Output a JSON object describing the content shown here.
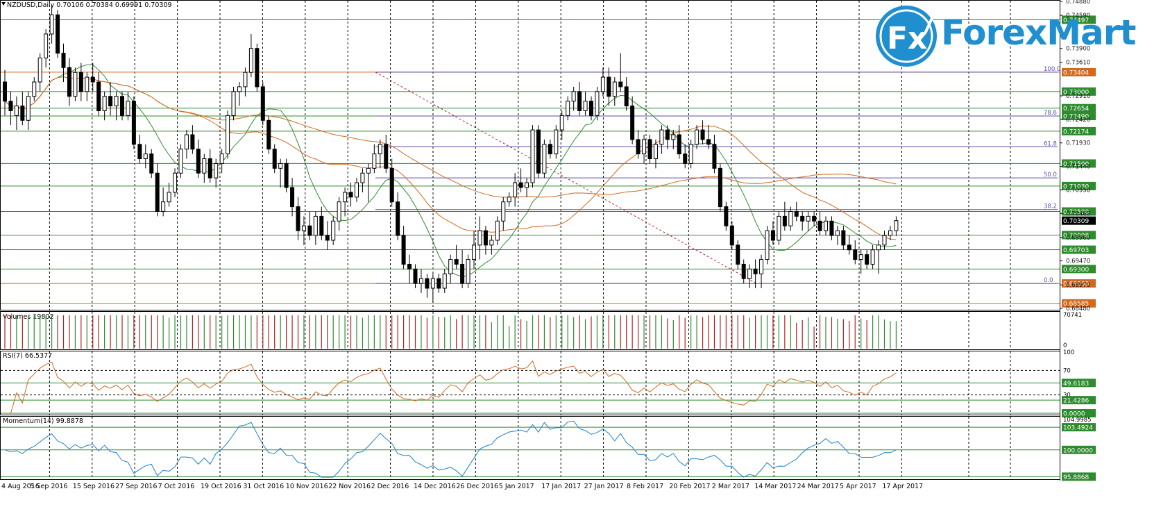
{
  "header": {
    "symbol": "NZDUSD,Daily",
    "ohlc": "0.70106 0.70384 0.69991 0.70309"
  },
  "logo": {
    "text": "ForexMart",
    "mark": "Fx",
    "colors": {
      "blue": "#1f8fd0",
      "white": "#ffffff"
    }
  },
  "colors": {
    "grid": "#000000",
    "level_green": "#2e8b2e",
    "level_orange": "#d2691e",
    "level_purple": "#6a1b6a",
    "fib_line": "#5b4fa8",
    "ma_fast": "#2e8b2e",
    "ma_slow": "#d2691e",
    "trend_dashed": "#b22222",
    "candle_up": "#ffffff",
    "candle_down": "#000000",
    "volume_up": "#2e8b2e",
    "volume_down": "#b22222",
    "rsi": "#d2691e",
    "momentum": "#1e7fd0"
  },
  "chart_data": [
    {
      "type": "candlestick",
      "title": "NZDUSD,Daily",
      "ylim": [
        0.6848,
        0.7488
      ],
      "price_axis_ticks": [
        "0.74880",
        "0.74590",
        "0.73900",
        "0.73610",
        "0.72910",
        "0.72420",
        "0.71930",
        "0.71440",
        "0.70950",
        "0.70460",
        "0.69960",
        "0.69470",
        "0.68970",
        "0.68480"
      ],
      "x_labels": [
        "4 Aug 2016",
        "5 Sep 2016",
        "15 Sep 2016",
        "27 Sep 2016",
        "7 Oct 2016",
        "19 Oct 2016",
        "31 Oct 2016",
        "10 Nov 2016",
        "22 Nov 2016",
        "2 Dec 2016",
        "14 Dec 2016",
        "26 Dec 2016",
        "5 Jan 2017",
        "17 Jan 2017",
        "27 Jan 2017",
        "8 Feb 2017",
        "20 Feb 2017",
        "2 Mar 2017",
        "14 Mar 2017",
        "24 Mar 2017",
        "5 Apr 2017",
        "17 Apr 2017"
      ],
      "horizontal_levels": [
        {
          "label": "0.74497",
          "value": 0.74497,
          "color": "level_green"
        },
        {
          "label": "0.73404",
          "value": 0.73404,
          "color": "level_orange"
        },
        {
          "label": "0.73000",
          "value": 0.73,
          "color": "level_green"
        },
        {
          "label": "0.72654",
          "value": 0.72654,
          "color": "level_green"
        },
        {
          "label": "0.72490",
          "value": 0.7249,
          "color": "level_green"
        },
        {
          "label": "0.72174",
          "value": 0.72174,
          "color": "level_green"
        },
        {
          "label": "0.71500",
          "value": 0.715,
          "color": "level_green"
        },
        {
          "label": "0.71030",
          "value": 0.7103,
          "color": "level_green"
        },
        {
          "label": "0.70500",
          "value": 0.705,
          "color": "level_green"
        },
        {
          "label": "0.70008",
          "value": 0.70008,
          "color": "level_green"
        },
        {
          "label": "0.69703",
          "value": 0.69703,
          "color": "level_green"
        },
        {
          "label": "0.69300",
          "value": 0.693,
          "color": "level_green"
        },
        {
          "label": "0.69000",
          "value": 0.69,
          "color": "level_orange"
        },
        {
          "label": "0.68585",
          "value": 0.68585,
          "color": "level_orange"
        }
      ],
      "current_price": {
        "label": "0.70309",
        "value": 0.70309
      },
      "fibonacci": [
        {
          "label": "100.0",
          "value": 0.73404
        },
        {
          "label": "78.6",
          "value": 0.7249
        },
        {
          "label": "61.8",
          "value": 0.7185
        },
        {
          "label": "50.0",
          "value": 0.712
        },
        {
          "label": "38.2",
          "value": 0.7054
        },
        {
          "label": "0.0",
          "value": 0.69
        }
      ],
      "candles": [
        [
          0.732,
          0.7345,
          0.725,
          0.728
        ],
        [
          0.728,
          0.73,
          0.723,
          0.726
        ],
        [
          0.725,
          0.729,
          0.722,
          0.727
        ],
        [
          0.727,
          0.73,
          0.723,
          0.724
        ],
        [
          0.724,
          0.73,
          0.722,
          0.729
        ],
        [
          0.729,
          0.733,
          0.728,
          0.732
        ],
        [
          0.732,
          0.738,
          0.73,
          0.737
        ],
        [
          0.737,
          0.743,
          0.735,
          0.742
        ],
        [
          0.742,
          0.748,
          0.74,
          0.746
        ],
        [
          0.746,
          0.747,
          0.737,
          0.738
        ],
        [
          0.738,
          0.74,
          0.732,
          0.735
        ],
        [
          0.735,
          0.737,
          0.727,
          0.729
        ],
        [
          0.729,
          0.735,
          0.728,
          0.734
        ],
        [
          0.734,
          0.736,
          0.728,
          0.73
        ],
        [
          0.73,
          0.734,
          0.728,
          0.733
        ],
        [
          0.733,
          0.736,
          0.73,
          0.732
        ],
        [
          0.732,
          0.734,
          0.725,
          0.726
        ],
        [
          0.726,
          0.73,
          0.724,
          0.729
        ],
        [
          0.729,
          0.732,
          0.725,
          0.727
        ],
        [
          0.727,
          0.73,
          0.724,
          0.729
        ],
        [
          0.729,
          0.73,
          0.724,
          0.725
        ],
        [
          0.725,
          0.73,
          0.724,
          0.728
        ],
        [
          0.728,
          0.729,
          0.718,
          0.719
        ],
        [
          0.719,
          0.721,
          0.715,
          0.716
        ],
        [
          0.716,
          0.719,
          0.714,
          0.717
        ],
        [
          0.717,
          0.718,
          0.712,
          0.713
        ],
        [
          0.713,
          0.715,
          0.704,
          0.705
        ],
        [
          0.705,
          0.71,
          0.704,
          0.707
        ],
        [
          0.707,
          0.711,
          0.706,
          0.709
        ],
        [
          0.709,
          0.714,
          0.708,
          0.713
        ],
        [
          0.713,
          0.719,
          0.712,
          0.718
        ],
        [
          0.718,
          0.722,
          0.716,
          0.721
        ],
        [
          0.721,
          0.723,
          0.717,
          0.718
        ],
        [
          0.718,
          0.72,
          0.712,
          0.713
        ],
        [
          0.713,
          0.717,
          0.711,
          0.716
        ],
        [
          0.716,
          0.718,
          0.711,
          0.712
        ],
        [
          0.712,
          0.716,
          0.71,
          0.715
        ],
        [
          0.715,
          0.718,
          0.713,
          0.717
        ],
        [
          0.717,
          0.726,
          0.716,
          0.725
        ],
        [
          0.725,
          0.731,
          0.724,
          0.73
        ],
        [
          0.73,
          0.732,
          0.727,
          0.731
        ],
        [
          0.731,
          0.735,
          0.729,
          0.734
        ],
        [
          0.734,
          0.742,
          0.733,
          0.739
        ],
        [
          0.739,
          0.74,
          0.73,
          0.731
        ],
        [
          0.731,
          0.732,
          0.723,
          0.724
        ],
        [
          0.724,
          0.725,
          0.717,
          0.718
        ],
        [
          0.718,
          0.719,
          0.713,
          0.714
        ],
        [
          0.714,
          0.716,
          0.71,
          0.715
        ],
        [
          0.715,
          0.716,
          0.709,
          0.71
        ],
        [
          0.71,
          0.712,
          0.704,
          0.706
        ],
        [
          0.706,
          0.708,
          0.699,
          0.701
        ],
        [
          0.701,
          0.704,
          0.698,
          0.702
        ],
        [
          0.702,
          0.705,
          0.699,
          0.7
        ],
        [
          0.7,
          0.705,
          0.698,
          0.704
        ],
        [
          0.704,
          0.706,
          0.699,
          0.7
        ],
        [
          0.7,
          0.703,
          0.697,
          0.699
        ],
        [
          0.699,
          0.704,
          0.698,
          0.703
        ],
        [
          0.703,
          0.708,
          0.701,
          0.707
        ],
        [
          0.707,
          0.71,
          0.704,
          0.709
        ],
        [
          0.709,
          0.711,
          0.706,
          0.708
        ],
        [
          0.708,
          0.712,
          0.707,
          0.711
        ],
        [
          0.711,
          0.714,
          0.709,
          0.713
        ],
        [
          0.713,
          0.715,
          0.707,
          0.714
        ],
        [
          0.714,
          0.719,
          0.713,
          0.717
        ],
        [
          0.717,
          0.72,
          0.714,
          0.719
        ],
        [
          0.719,
          0.721,
          0.713,
          0.714
        ],
        [
          0.714,
          0.716,
          0.706,
          0.707
        ],
        [
          0.707,
          0.709,
          0.699,
          0.7
        ],
        [
          0.7,
          0.702,
          0.693,
          0.694
        ],
        [
          0.694,
          0.696,
          0.69,
          0.693
        ],
        [
          0.693,
          0.694,
          0.689,
          0.69
        ],
        [
          0.69,
          0.693,
          0.688,
          0.691
        ],
        [
          0.691,
          0.692,
          0.687,
          0.689
        ],
        [
          0.689,
          0.692,
          0.686,
          0.691
        ],
        [
          0.691,
          0.692,
          0.688,
          0.689
        ],
        [
          0.689,
          0.693,
          0.688,
          0.692
        ],
        [
          0.692,
          0.696,
          0.69,
          0.695
        ],
        [
          0.695,
          0.698,
          0.693,
          0.694
        ],
        [
          0.694,
          0.697,
          0.689,
          0.69
        ],
        [
          0.69,
          0.696,
          0.689,
          0.695
        ],
        [
          0.695,
          0.701,
          0.693,
          0.698
        ],
        [
          0.698,
          0.704,
          0.695,
          0.701
        ],
        [
          0.701,
          0.702,
          0.696,
          0.698
        ],
        [
          0.698,
          0.7,
          0.696,
          0.699
        ],
        [
          0.699,
          0.704,
          0.698,
          0.703
        ],
        [
          0.703,
          0.708,
          0.701,
          0.707
        ],
        [
          0.707,
          0.709,
          0.706,
          0.708
        ],
        [
          0.708,
          0.713,
          0.706,
          0.711
        ],
        [
          0.711,
          0.714,
          0.709,
          0.71
        ],
        [
          0.71,
          0.712,
          0.708,
          0.711
        ],
        [
          0.711,
          0.723,
          0.71,
          0.722
        ],
        [
          0.722,
          0.723,
          0.712,
          0.713
        ],
        [
          0.713,
          0.72,
          0.712,
          0.719
        ],
        [
          0.719,
          0.72,
          0.716,
          0.717
        ],
        [
          0.717,
          0.723,
          0.716,
          0.722
        ],
        [
          0.722,
          0.726,
          0.72,
          0.725
        ],
        [
          0.725,
          0.729,
          0.724,
          0.728
        ],
        [
          0.728,
          0.731,
          0.726,
          0.73
        ],
        [
          0.73,
          0.732,
          0.725,
          0.726
        ],
        [
          0.726,
          0.73,
          0.725,
          0.728
        ],
        [
          0.728,
          0.729,
          0.724,
          0.725
        ],
        [
          0.725,
          0.731,
          0.724,
          0.73
        ],
        [
          0.73,
          0.735,
          0.729,
          0.733
        ],
        [
          0.733,
          0.735,
          0.727,
          0.729
        ],
        [
          0.729,
          0.733,
          0.727,
          0.732
        ],
        [
          0.732,
          0.738,
          0.73,
          0.731
        ],
        [
          0.731,
          0.733,
          0.726,
          0.727
        ],
        [
          0.727,
          0.729,
          0.719,
          0.72
        ],
        [
          0.72,
          0.722,
          0.716,
          0.717
        ],
        [
          0.717,
          0.721,
          0.715,
          0.72
        ],
        [
          0.72,
          0.721,
          0.715,
          0.716
        ],
        [
          0.716,
          0.72,
          0.714,
          0.719
        ],
        [
          0.719,
          0.723,
          0.717,
          0.722
        ],
        [
          0.722,
          0.723,
          0.718,
          0.72
        ],
        [
          0.72,
          0.722,
          0.718,
          0.721
        ],
        [
          0.721,
          0.723,
          0.716,
          0.717
        ],
        [
          0.717,
          0.719,
          0.714,
          0.715
        ],
        [
          0.715,
          0.72,
          0.714,
          0.719
        ],
        [
          0.719,
          0.723,
          0.718,
          0.722
        ],
        [
          0.722,
          0.724,
          0.719,
          0.72
        ],
        [
          0.72,
          0.723,
          0.718,
          0.719
        ],
        [
          0.719,
          0.721,
          0.713,
          0.714
        ],
        [
          0.714,
          0.715,
          0.705,
          0.706
        ],
        [
          0.706,
          0.707,
          0.701,
          0.702
        ],
        [
          0.702,
          0.703,
          0.697,
          0.698
        ],
        [
          0.698,
          0.699,
          0.693,
          0.694
        ],
        [
          0.694,
          0.695,
          0.69,
          0.691
        ],
        [
          0.691,
          0.694,
          0.689,
          0.693
        ],
        [
          0.693,
          0.695,
          0.689,
          0.692
        ],
        [
          0.692,
          0.696,
          0.689,
          0.695
        ],
        [
          0.695,
          0.702,
          0.694,
          0.701
        ],
        [
          0.701,
          0.703,
          0.698,
          0.699
        ],
        [
          0.699,
          0.705,
          0.698,
          0.704
        ],
        [
          0.704,
          0.707,
          0.701,
          0.702
        ],
        [
          0.702,
          0.706,
          0.701,
          0.705
        ],
        [
          0.705,
          0.707,
          0.703,
          0.704
        ],
        [
          0.704,
          0.705,
          0.701,
          0.703
        ],
        [
          0.703,
          0.705,
          0.701,
          0.704
        ],
        [
          0.704,
          0.705,
          0.702,
          0.703
        ],
        [
          0.703,
          0.705,
          0.7,
          0.701
        ],
        [
          0.701,
          0.704,
          0.7,
          0.703
        ],
        [
          0.703,
          0.704,
          0.699,
          0.7
        ],
        [
          0.7,
          0.702,
          0.698,
          0.701
        ],
        [
          0.701,
          0.702,
          0.697,
          0.698
        ],
        [
          0.698,
          0.7,
          0.696,
          0.697
        ],
        [
          0.697,
          0.699,
          0.694,
          0.695
        ],
        [
          0.695,
          0.697,
          0.692,
          0.696
        ],
        [
          0.696,
          0.697,
          0.693,
          0.694
        ],
        [
          0.694,
          0.698,
          0.693,
          0.697
        ],
        [
          0.697,
          0.699,
          0.692,
          0.698
        ],
        [
          0.698,
          0.701,
          0.697,
          0.7
        ],
        [
          0.7,
          0.702,
          0.699,
          0.701
        ],
        [
          0.701,
          0.704,
          0.6999,
          0.70309
        ]
      ]
    },
    {
      "type": "bar",
      "title": "Volumes 19802",
      "ylim": [
        0,
        70741
      ],
      "axis_labels": [
        "70741",
        "0"
      ]
    },
    {
      "type": "line",
      "title": "RSI(7) 66.5377",
      "ylim": [
        0,
        100
      ],
      "levels": [
        {
          "label": "100",
          "value": 100
        },
        {
          "label": "70",
          "value": 70
        },
        {
          "label": "49.6183",
          "value": 49.6183
        },
        {
          "label": "30",
          "value": 30
        },
        {
          "label": "21.4286",
          "value": 21.4286
        },
        {
          "label": "0.0000",
          "value": 0
        }
      ]
    },
    {
      "type": "line",
      "title": "Momentum(14) 99.8878",
      "ylim": [
        95.6,
        104.9985
      ],
      "levels": [
        {
          "label": "104.9985",
          "value": 104.9985
        },
        {
          "label": "103.4924",
          "value": 103.4924
        },
        {
          "label": "100.0000",
          "value": 100.0
        },
        {
          "label": "95.8868",
          "value": 95.8868
        }
      ]
    }
  ]
}
